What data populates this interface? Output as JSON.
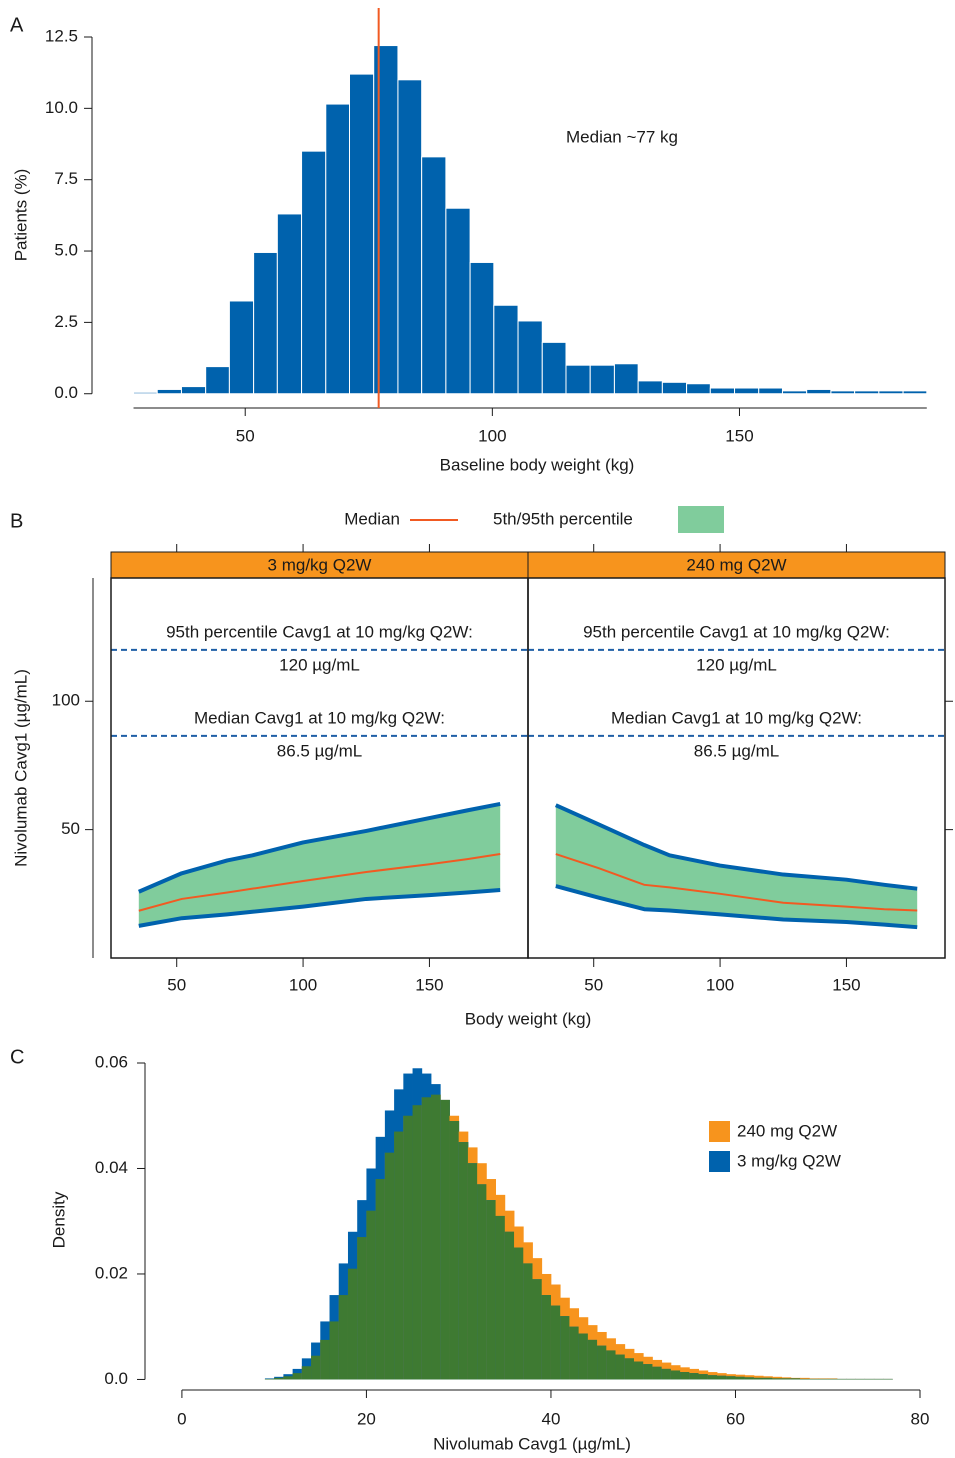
{
  "chart_data": [
    {
      "type": "histogram",
      "panel_label": "A",
      "ylabel": "Patients (%)",
      "xlabel": "Baseline body weight (kg)",
      "annotation": "Median ~77 kg",
      "median_line": 77,
      "median_color": "#f15a22",
      "color": "#0062ad",
      "bins": [
        27.4,
        32.2,
        37.1,
        42.0,
        46.8,
        51.7,
        56.5,
        61.4,
        66.3,
        71.1,
        76.0,
        80.9,
        85.7,
        90.6,
        95.5,
        100.3,
        105.2,
        110.1,
        114.9,
        119.8,
        124.7,
        129.5,
        134.4,
        139.3,
        144.1,
        149.0,
        153.9,
        158.7,
        163.6,
        168.5,
        173.3,
        178.2,
        183.1,
        187.9
      ],
      "values": [
        0.05,
        0.15,
        0.25,
        0.95,
        3.25,
        4.95,
        6.3,
        8.5,
        10.15,
        11.2,
        12.2,
        11.0,
        8.3,
        6.5,
        4.6,
        3.1,
        2.55,
        1.8,
        1.0,
        1.0,
        1.05,
        0.45,
        0.4,
        0.35,
        0.2,
        0.2,
        0.2,
        0.1,
        0.15,
        0.1,
        0.1,
        0.1,
        0.1
      ],
      "xlim": [
        19,
        193
      ],
      "xticks": [
        50,
        100,
        150
      ],
      "ylim": [
        -0.5,
        12.5
      ],
      "yticks": [
        {
          "value": 0,
          "label": "0.0"
        },
        2.5,
        {
          "value": 5,
          "label": "5.0"
        },
        7.5,
        {
          "value": 10,
          "label": "10.0"
        },
        12.5
      ]
    },
    {
      "type": "band",
      "panel_label": "B",
      "ylabel": "Nivolumab Cavg1 (µg/mL)",
      "xlabel": "Body weight (kg)",
      "xlim": [
        24,
        189
      ],
      "xticks": [
        50,
        100,
        150
      ],
      "ylim": [
        0,
        148
      ],
      "yticks": [
        50,
        100
      ],
      "legend": [
        {
          "name": "Median",
          "color": "#f15a22"
        },
        {
          "name": "5th/95th percentile",
          "color": "#80cc9c"
        }
      ],
      "line_color": "#0062ad",
      "strip_color": "#f7941d",
      "reference_color": "#1f5fa6",
      "reference_lines": [
        {
          "value": 120,
          "label": "95th percentile Cavg1 at 10 mg/kg Q2W:",
          "value_label": "120 µg/mL"
        },
        {
          "value": 86.5,
          "label": "Median Cavg1 at 10 mg/kg Q2W:",
          "value_label": "86.5 µg/mL"
        }
      ],
      "facets": [
        {
          "strip": "3 mg/kg Q2W",
          "x": [
            35,
            52,
            70,
            80,
            100,
            125,
            150,
            165,
            178
          ],
          "median": [
            18.4,
            23,
            25.5,
            27,
            30,
            33.5,
            36.5,
            38.5,
            40.5
          ],
          "lower": [
            12.5,
            15.5,
            17,
            18,
            20,
            23,
            24.5,
            25.5,
            26.5
          ],
          "upper": [
            25.8,
            33,
            38,
            40,
            45,
            49.5,
            54.5,
            57.5,
            60
          ]
        },
        {
          "strip": "240 mg Q2W",
          "x": [
            35,
            52,
            70,
            80,
            100,
            125,
            150,
            165,
            178
          ],
          "median": [
            40.5,
            35,
            28.5,
            27.5,
            25,
            21.5,
            20,
            19,
            18.5
          ],
          "lower": [
            28,
            23.5,
            19,
            18.5,
            17,
            15,
            14,
            13,
            12
          ],
          "upper": [
            59.5,
            52,
            44,
            40,
            36,
            32.5,
            30.5,
            28.5,
            27
          ]
        }
      ]
    },
    {
      "type": "overlap-histogram",
      "panel_label": "C",
      "ylabel": "Density",
      "xlabel": "Nivolumab Cavg1 (µg/mL)",
      "overlap_color": "#3e7a32",
      "bins": [
        9,
        10,
        11,
        12,
        13,
        14,
        15,
        16,
        17,
        18,
        19,
        20,
        21,
        22,
        23,
        24,
        25,
        26,
        27,
        28,
        29,
        30,
        31,
        32,
        33,
        34,
        35,
        36,
        37,
        38,
        39,
        40,
        41,
        42,
        43,
        44,
        45,
        46,
        47,
        48,
        49,
        50,
        51,
        52,
        53,
        54,
        55,
        56,
        57,
        58,
        59,
        60,
        61,
        62,
        63,
        64,
        65,
        66,
        67,
        68,
        69,
        70,
        71,
        72,
        73,
        74,
        75,
        76,
        77
      ],
      "series": [
        {
          "name": "240 mg Q2W",
          "color": "#f7941d",
          "values": [
            0.0001,
            0.0003,
            0.0006,
            0.0012,
            0.0025,
            0.0045,
            0.0075,
            0.011,
            0.016,
            0.021,
            0.027,
            0.032,
            0.038,
            0.043,
            0.047,
            0.05,
            0.052,
            0.0535,
            0.054,
            0.053,
            0.05,
            0.047,
            0.044,
            0.041,
            0.038,
            0.035,
            0.032,
            0.029,
            0.026,
            0.023,
            0.02,
            0.018,
            0.0155,
            0.0135,
            0.0118,
            0.0103,
            0.009,
            0.0078,
            0.0067,
            0.0058,
            0.005,
            0.0043,
            0.0037,
            0.0032,
            0.0027,
            0.0023,
            0.002,
            0.0017,
            0.0014,
            0.0012,
            0.001,
            0.0009,
            0.0008,
            0.0007,
            0.0006,
            0.0005,
            0.0004,
            0.0003,
            0.0003,
            0.0002,
            0.0002,
            0.0002,
            0.0001,
            0.0001,
            0.0001,
            0.0001,
            0.0001,
            0.0001
          ]
        },
        {
          "name": "3 mg/kg Q2W",
          "color": "#0062ad",
          "values": [
            0.0002,
            0.0005,
            0.001,
            0.002,
            0.004,
            0.007,
            0.011,
            0.016,
            0.022,
            0.028,
            0.034,
            0.04,
            0.046,
            0.051,
            0.055,
            0.058,
            0.059,
            0.058,
            0.056,
            0.053,
            0.049,
            0.045,
            0.041,
            0.037,
            0.034,
            0.031,
            0.028,
            0.025,
            0.022,
            0.019,
            0.016,
            0.014,
            0.012,
            0.01,
            0.0087,
            0.0075,
            0.0064,
            0.0055,
            0.0047,
            0.004,
            0.0034,
            0.0029,
            0.0024,
            0.002,
            0.0017,
            0.0014,
            0.0012,
            0.001,
            0.0008,
            0.0007,
            0.0006,
            0.0005,
            0.0004,
            0.0003,
            0.0003,
            0.0002,
            0.0002,
            0.0002,
            0.0001,
            0.0001,
            0.0001,
            0.0001,
            0.0001,
            0.0001,
            0.0001,
            0.0001,
            0.0001,
            0.0001
          ]
        }
      ],
      "xlim": [
        -4,
        80
      ],
      "xticks": [
        0,
        20,
        40,
        60,
        80
      ],
      "ylim": [
        -0.002,
        0.06
      ],
      "yticks": [
        {
          "value": 0,
          "label": "0.0"
        },
        0.02,
        0.04,
        0.06
      ]
    }
  ]
}
